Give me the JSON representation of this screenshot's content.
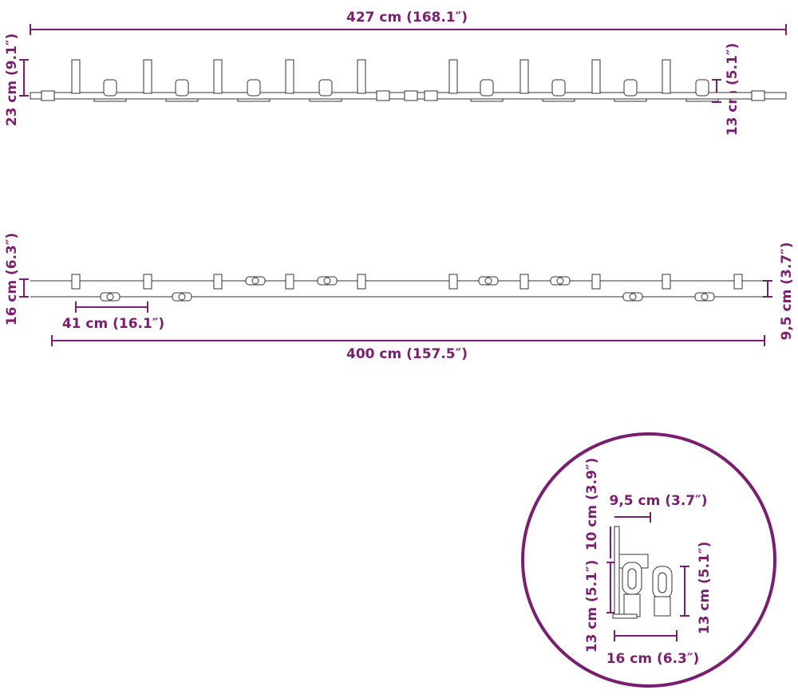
{
  "top_view": {
    "length": "427 cm (168.1″)",
    "height": "23 cm (9.1″)",
    "hanger_height": "13 cm (5.1″)"
  },
  "bottom_view": {
    "depth": "16 cm (6.3″)",
    "spacing": "41 cm (16.1″)",
    "rail_length": "400 cm (157.5″)",
    "offset": "9,5 cm (3.7″)"
  },
  "detail": {
    "bracket_height": "10 cm (3.9″)",
    "bracket_offset": "9,5 cm (3.7″)",
    "left_height": "13 cm (5.1″)",
    "right_height": "13 cm (5.1″)",
    "width": "16 cm (6.3″)"
  }
}
